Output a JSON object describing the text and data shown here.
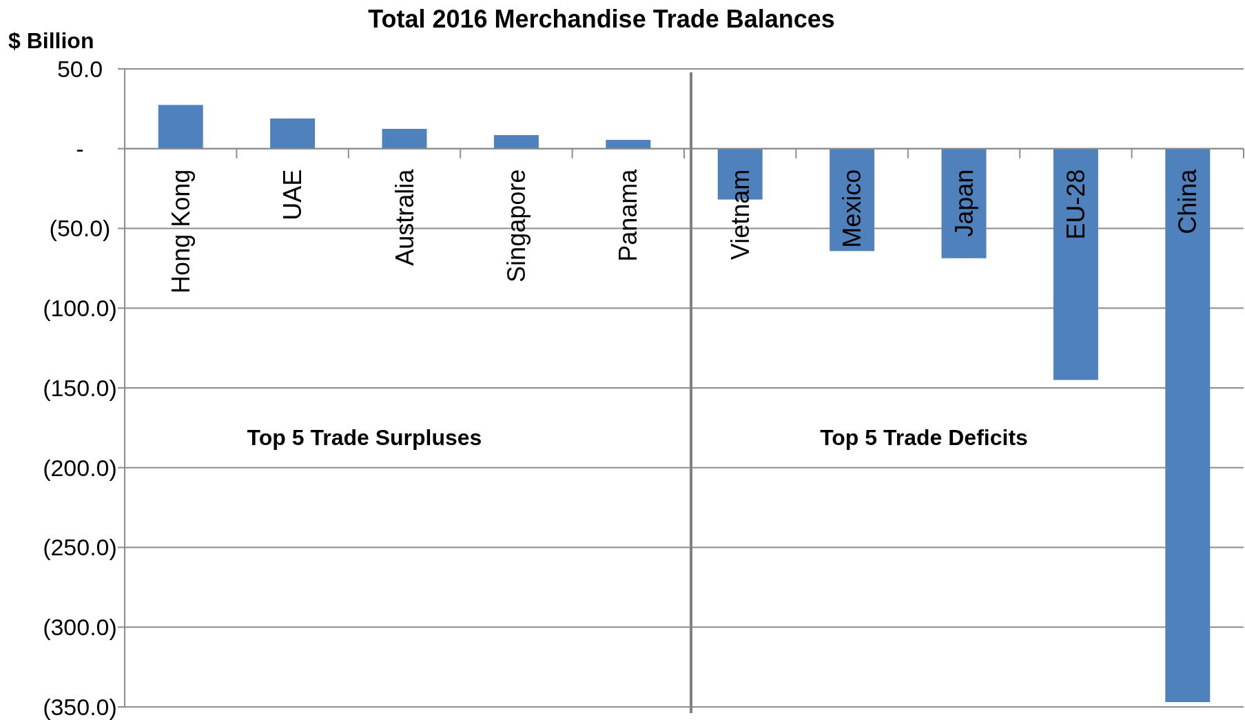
{
  "chart_data": {
    "type": "bar",
    "title": "Total 2016 Merchandise Trade Balances",
    "ylabel": "$ Billion",
    "categories": [
      "Hong Kong",
      "UAE",
      "Australia",
      "Singapore",
      "Panama",
      "Vietnam",
      "Mexico",
      "Japan",
      "EU-28",
      "China"
    ],
    "values": [
      27.4,
      18.9,
      12.4,
      8.5,
      5.5,
      -31.9,
      -64.2,
      -68.7,
      -145.0,
      -347.0
    ],
    "color": "#4f81bd",
    "ylim": [
      -350,
      50
    ],
    "yticks": [
      {
        "value": 50,
        "label": "50.0"
      },
      {
        "value": 0,
        "label": "-"
      },
      {
        "value": -50,
        "label": "(50.0)"
      },
      {
        "value": -100,
        "label": "(100.0)"
      },
      {
        "value": -150,
        "label": "(150.0)"
      },
      {
        "value": -200,
        "label": "(200.0)"
      },
      {
        "value": -250,
        "label": "(250.0)"
      },
      {
        "value": -300,
        "label": "(300.0)"
      },
      {
        "value": -350,
        "label": "(350.0)"
      }
    ],
    "grid": "y",
    "annotations": [
      "Top 5 Trade Surpluses",
      "Top 5 Trade Deficits"
    ]
  }
}
